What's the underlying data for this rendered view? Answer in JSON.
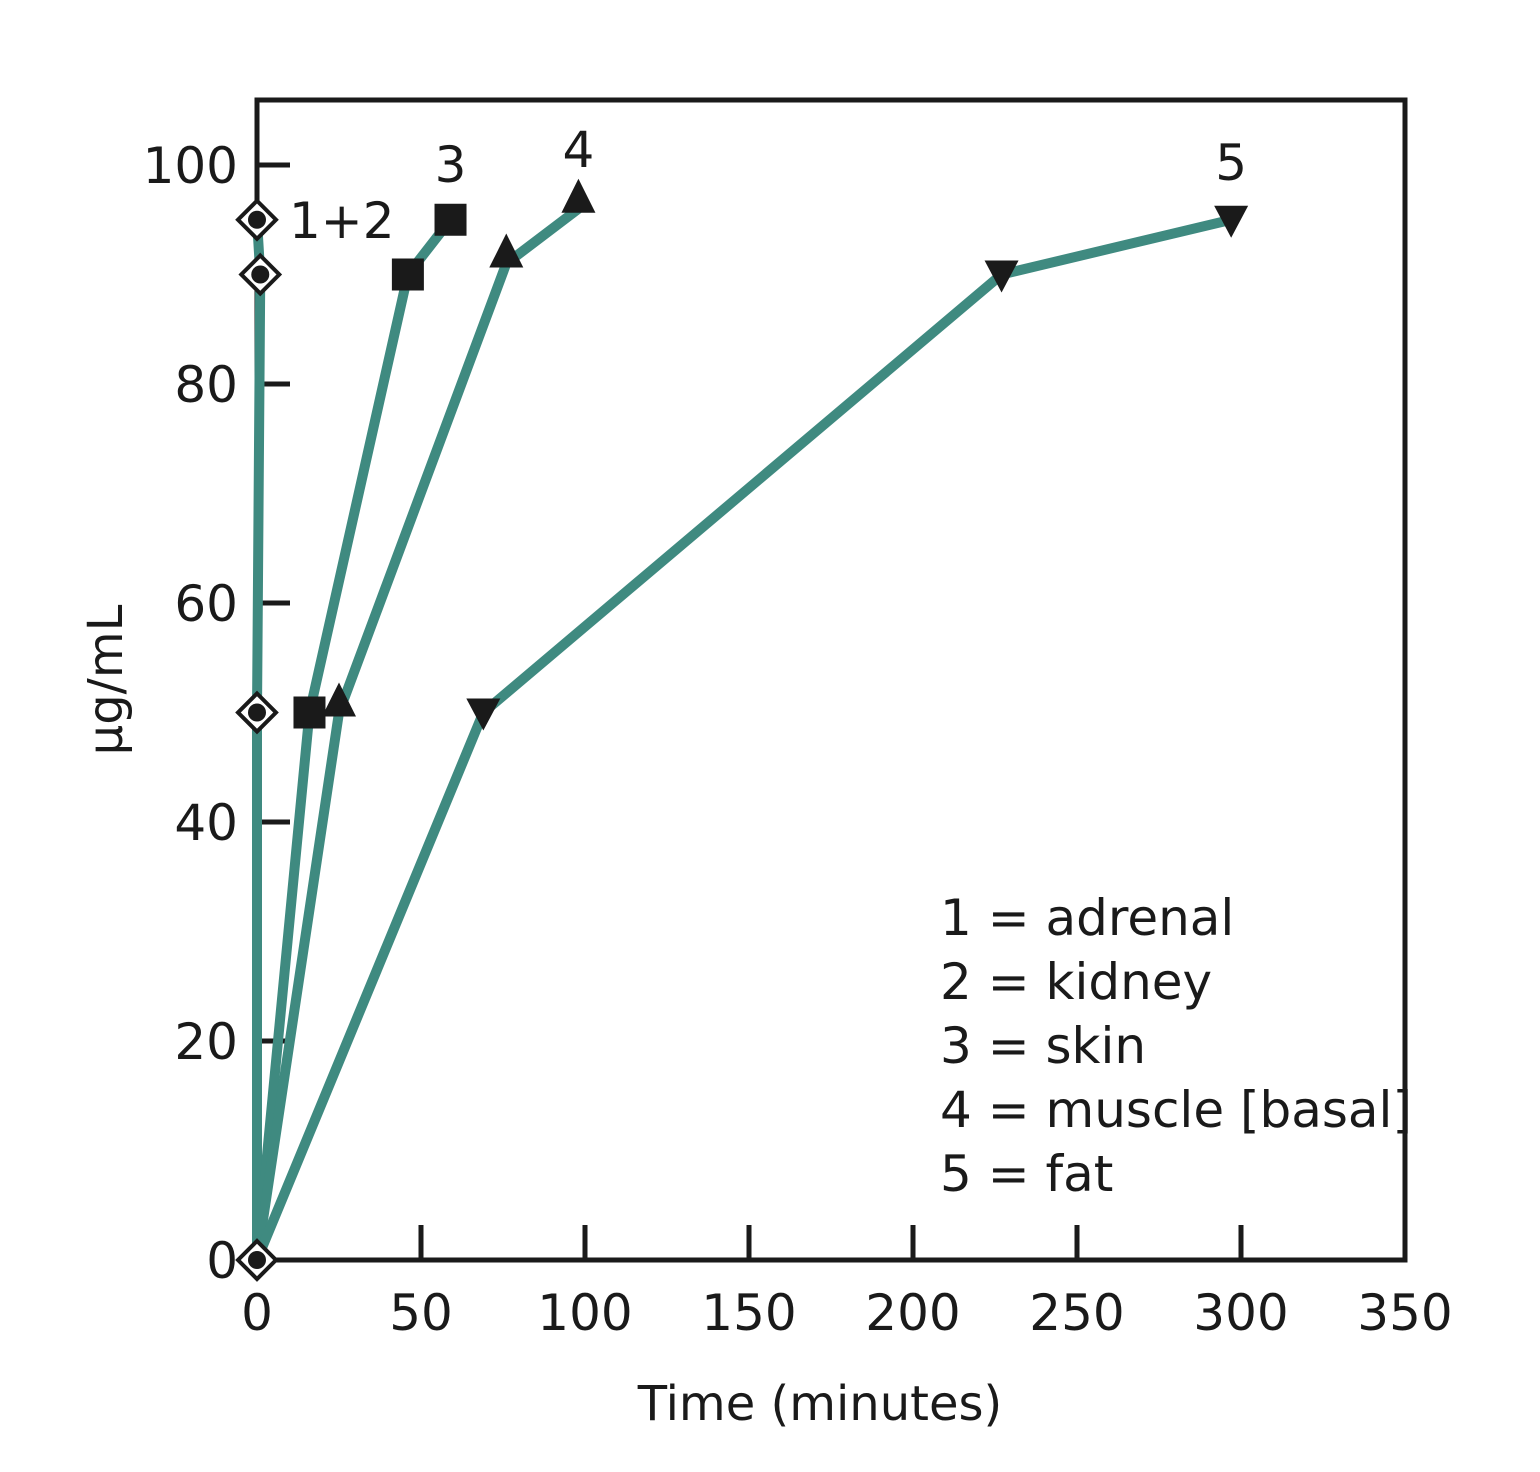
{
  "chart_data": {
    "type": "line",
    "title": "",
    "xlabel": "Time (minutes)",
    "ylabel": "μg/mL",
    "xlim": [
      0,
      350
    ],
    "ylim": [
      0,
      105
    ],
    "xticks": [
      0,
      50,
      100,
      150,
      200,
      250,
      300,
      350
    ],
    "yticks": [
      0,
      20,
      40,
      60,
      80,
      100
    ],
    "grid": false,
    "line_color": "#3f8a80",
    "series": [
      {
        "label": "1+2",
        "marker": "diamond",
        "points": [
          [
            0,
            0
          ],
          [
            0,
            50
          ],
          [
            1,
            90
          ],
          [
            0,
            95
          ]
        ]
      },
      {
        "label": "3",
        "marker": "square",
        "points": [
          [
            0,
            0
          ],
          [
            16,
            50
          ],
          [
            46,
            90
          ],
          [
            59,
            95
          ]
        ]
      },
      {
        "label": "4",
        "marker": "triangle-up",
        "points": [
          [
            0,
            0
          ],
          [
            25,
            50
          ],
          [
            76,
            91
          ],
          [
            98,
            96
          ]
        ]
      },
      {
        "label": "5",
        "marker": "triangle-down",
        "points": [
          [
            0,
            0
          ],
          [
            69,
            50
          ],
          [
            227,
            90
          ],
          [
            297,
            95
          ]
        ]
      }
    ],
    "legend": {
      "placement": "bottom-right",
      "entries": [
        "1 = adrenal",
        "2 = kidney",
        "3 = skin",
        "4 = muscle [basal]",
        "5 = fat"
      ]
    }
  }
}
